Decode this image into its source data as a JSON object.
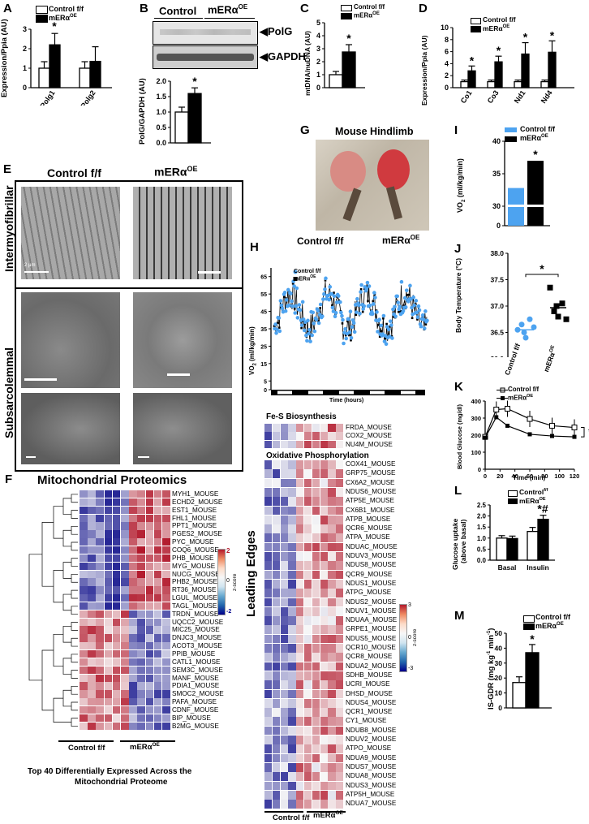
{
  "panels": {
    "A": {
      "letter": "A",
      "ylabel": "Expression/Ppia (AU)",
      "ylim": [
        0,
        3
      ],
      "yticks": [
        "0",
        "1",
        "2",
        "3"
      ],
      "categories": [
        "Polg1",
        "Polg2"
      ],
      "legend": [
        "Control f/f",
        "mERα",
        "OE"
      ],
      "star": "*"
    },
    "B": {
      "letter": "B",
      "header_ctrl": "Control",
      "header_oe": "mERα",
      "header_oe_sup": "OE",
      "band1": "PolG",
      "band2": "GAPDH",
      "ylabel": "PolG/GAPDH (AU)",
      "yticks": [
        "0.0",
        "0.5",
        "1.0",
        "1.5",
        "2.0"
      ],
      "star": "*"
    },
    "C": {
      "letter": "C",
      "ylabel": "mtDNA/nuDNA (AU)",
      "yticks": [
        "0",
        "1",
        "2",
        "3",
        "4",
        "5"
      ],
      "legend": [
        "Control f/f",
        "mERα",
        "OE"
      ],
      "star": "*"
    },
    "D": {
      "letter": "D",
      "ylabel": "Expression/Ppia (AU)",
      "yticks": [
        "0",
        "2",
        "4",
        "6",
        "8",
        "10"
      ],
      "categories": [
        "Co1",
        "Co3",
        "Nd1",
        "Nd4"
      ],
      "legend": [
        "Control f/f",
        "mERα",
        "OE"
      ],
      "star": "*"
    },
    "E": {
      "letter": "E",
      "col1": "Control f/f",
      "col2": "mERα",
      "col2_sup": "OE",
      "row1": "Intermyofibrillar",
      "row2": "Subsarcolemmal",
      "scalebar": "2 μm"
    },
    "F": {
      "letter": "F",
      "title": "Mitochondrial Proteomics",
      "caption1": "Top 40 Differentially Expressed Across the",
      "caption2": "Mitochondrial Proteome",
      "group1": "Control f/f",
      "group2": "mERα",
      "group2_sup": "OE",
      "scale_max": "2",
      "scale_min": "-2",
      "scale_label": "z-score",
      "scale_zero": "0"
    },
    "G": {
      "letter": "G",
      "title": "Mouse Hindlimb",
      "label1": "Control f/f",
      "label2": "mERα",
      "label2_sup": "OE"
    },
    "H": {
      "letter": "H",
      "ylabel": "VO",
      "ylabel_sub": "2",
      "ylabel_unit": " (ml/kg/min)",
      "xlabel": "Time (hours)",
      "yticks": [
        "0",
        "5",
        "15",
        "25",
        "35",
        "45",
        "55",
        "65"
      ],
      "legend": [
        "Control f/f",
        "mERα",
        "OE"
      ]
    },
    "I": {
      "letter": "I",
      "ylabel": "VO",
      "ylabel_sub": "2",
      "ylabel_unit": " (ml/kg/min)",
      "yticks": [
        "0",
        "30",
        "35",
        "40"
      ],
      "legend": [
        "Control f/f",
        "mERα",
        "OE"
      ],
      "star": "*"
    },
    "J": {
      "letter": "J",
      "ylabel": "Body Temperature (°C)",
      "yticks": [
        "36.0",
        "36.5",
        "37.0",
        "37.5",
        "38.0"
      ],
      "categories": [
        "Control f/f",
        "mERα"
      ],
      "cat2_sup": "OE",
      "star": "*"
    },
    "K": {
      "letter": "K",
      "ylabel": "Blood Glucose (mg/dl)",
      "xlabel": "Time (min)",
      "yticks": [
        "0",
        "100",
        "200",
        "300",
        "400"
      ],
      "xticks": [
        "0",
        "20",
        "40",
        "60",
        "80",
        "100",
        "120"
      ],
      "legend": [
        "Control f/f",
        "mERα",
        "OE"
      ],
      "star": "*"
    },
    "L": {
      "letter": "L",
      "ylabel": "Glucose uptake",
      "ylabel2": "(above basal)",
      "yticks": [
        "0.0",
        "0.5",
        "1.0",
        "1.5",
        "2.0",
        "2.5"
      ],
      "categories": [
        "Basal",
        "Insulin"
      ],
      "legend": [
        "Control",
        "f/f",
        "mERα",
        "OE"
      ],
      "star": "*#"
    },
    "M": {
      "letter": "M",
      "ylabel": "IS-GDR (mg kg",
      "ylabel_sup": "-1",
      "ylabel_mid": " min",
      "ylabel_sup2": "-1",
      "ylabel_end": ")",
      "yticks": [
        "0",
        "10",
        "20",
        "30",
        "40",
        "50"
      ],
      "legend": [
        "Control f/f",
        "mERα",
        "OE"
      ],
      "star": "*"
    },
    "LE": {
      "title1": "Fe-S Biosynthesis",
      "title2": "Oxidative Phosphorylation",
      "side": "Leading Edges",
      "group1": "Control f/f",
      "group2": "mERα",
      "group2_sup": "OE",
      "scale_max": "3",
      "scale_min": "-3",
      "scale_zero": "0",
      "scale_label": "z-score"
    }
  },
  "proteomics_genes": [
    "MYH1_MOUSE",
    "ECHD2_MOUSE",
    "EST1_MOUSE",
    "FHL1_MOUSE",
    "PPT1_MOUSE",
    "PGES2_MOUSE",
    "PYC_MOUSE",
    "COQ6_MOUSE",
    "PHB_MOUSE",
    "MYG_MOUSE",
    "NUCG_MOUSE",
    "PHB2_MOUSE",
    "RT36_MOUSE",
    "LGUL_MOUSE",
    "TAGL_MOUSE",
    "TRDN_MOUSE",
    "UQCC2_MOUSE",
    "MIC25_MOUSE",
    "DNJC3_MOUSE",
    "ACOT3_MOUSE",
    "PPIB_MOUSE",
    "CATL1_MOUSE",
    "SEM3C_MOUSE",
    "MANF_MOUSE",
    "PDIA1_MOUSE",
    "SMOC2_MOUSE",
    "PAFA_MOUSE",
    "CDNF_MOUSE",
    "BIP_MOUSE",
    "B2MG_MOUSE"
  ],
  "fes_genes": [
    "FRDA_MOUSE",
    "COX2_MOUSE",
    "NU4M_MOUSE"
  ],
  "oxphos_genes": [
    "COX41_MOUSE",
    "GRP75_MOUSE",
    "CX6A2_MOUSE",
    "NDUS6_MOUSE",
    "ATP5E_MOUSE",
    "CX6B1_MOUSE",
    "ATPB_MOUSE",
    "QCR6_MOUSE",
    "ATPA_MOUSE",
    "NDUAC_MOUSE",
    "NDUV3_MOUSE",
    "NDUS8_MOUSE",
    "QCR9_MOUSE",
    "NDUS1_MOUSE",
    "ATPG_MOUSE",
    "NDUS2_MOUSE",
    "NDUV1_MOUSE",
    "NDUAA_MOUSE",
    "GRPE1_MOUSE",
    "NDUS5_MOUSE",
    "QCR10_MOUSE",
    "QCR8_MOUSE",
    "NDUA2_MOUSE",
    "SDHB_MOUSE",
    "UCRI_MOUSE",
    "DHSD_MOUSE",
    "NDUS4_MOUSE",
    "QCR1_MOUSE",
    "CY1_MOUSE",
    "NDUB8_MOUSE",
    "NDUV2_MOUSE",
    "ATPO_MOUSE",
    "NDUA9_MOUSE",
    "NDUS7_MOUSE",
    "NDUA8_MOUSE",
    "NDUS3_MOUSE",
    "ATP5H_MOUSE",
    "NDUA7_MOUSE"
  ],
  "chart_data": [
    {
      "type": "bar",
      "panel": "A",
      "categories": [
        "Polg1",
        "Polg2"
      ],
      "series": [
        {
          "name": "Control f/f",
          "values": [
            1.0,
            1.0
          ]
        },
        {
          "name": "mERαOE",
          "values": [
            2.2,
            1.35
          ]
        }
      ],
      "ylim": [
        0,
        3
      ]
    },
    {
      "type": "bar",
      "panel": "B",
      "categories": [
        "PolG"
      ],
      "series": [
        {
          "name": "Control",
          "values": [
            1.0
          ]
        },
        {
          "name": "mERαOE",
          "values": [
            1.6
          ]
        }
      ],
      "ylim": [
        0,
        2
      ]
    },
    {
      "type": "bar",
      "panel": "C",
      "categories": [
        "mtDNA"
      ],
      "series": [
        {
          "name": "Control f/f",
          "values": [
            1.0
          ]
        },
        {
          "name": "mERαOE",
          "values": [
            2.75
          ]
        }
      ],
      "ylim": [
        0,
        5
      ]
    },
    {
      "type": "bar",
      "panel": "D",
      "categories": [
        "Co1",
        "Co3",
        "Nd1",
        "Nd4"
      ],
      "series": [
        {
          "name": "Control f/f",
          "values": [
            1.0,
            1.0,
            1.0,
            1.0
          ]
        },
        {
          "name": "mERαOE",
          "values": [
            2.8,
            4.3,
            5.6,
            5.9
          ]
        }
      ],
      "ylim": [
        0,
        10
      ]
    },
    {
      "type": "bar",
      "panel": "I",
      "categories": [
        "VO2"
      ],
      "series": [
        {
          "name": "Control f/f",
          "values": [
            32.8
          ]
        },
        {
          "name": "mERαOE",
          "values": [
            37.0
          ]
        }
      ],
      "ylim": [
        0,
        40
      ]
    },
    {
      "type": "scatter",
      "panel": "J",
      "categories": [
        "Control f/f",
        "mERαOE"
      ],
      "series": [
        {
          "name": "Control f/f",
          "values": [
            36.55,
            36.65,
            36.4,
            36.75,
            36.6,
            36.5
          ]
        },
        {
          "name": "mERαOE",
          "values": [
            37.35,
            36.9,
            36.8,
            37.05,
            36.75,
            37.0
          ]
        }
      ],
      "ylim": [
        36.0,
        38.0
      ]
    },
    {
      "type": "line",
      "panel": "K",
      "x": [
        0,
        15,
        30,
        60,
        90,
        120
      ],
      "series": [
        {
          "name": "Control f/f",
          "values": [
            190,
            350,
            355,
            295,
            255,
            245
          ]
        },
        {
          "name": "mERαOE",
          "values": [
            185,
            305,
            255,
            205,
            195,
            190
          ]
        }
      ],
      "ylim": [
        0,
        400
      ]
    },
    {
      "type": "bar",
      "panel": "L",
      "categories": [
        "Basal",
        "Insulin"
      ],
      "series": [
        {
          "name": "Control f/f",
          "values": [
            1.0,
            1.3
          ]
        },
        {
          "name": "mERαOE",
          "values": [
            0.98,
            1.85
          ]
        }
      ],
      "ylim": [
        0,
        2.5
      ]
    },
    {
      "type": "bar",
      "panel": "M",
      "categories": [
        "IS-GDR"
      ],
      "series": [
        {
          "name": "Control f/f",
          "values": [
            17
          ]
        },
        {
          "name": "mERαOE",
          "values": [
            37
          ]
        }
      ],
      "ylim": [
        0,
        50
      ]
    }
  ]
}
